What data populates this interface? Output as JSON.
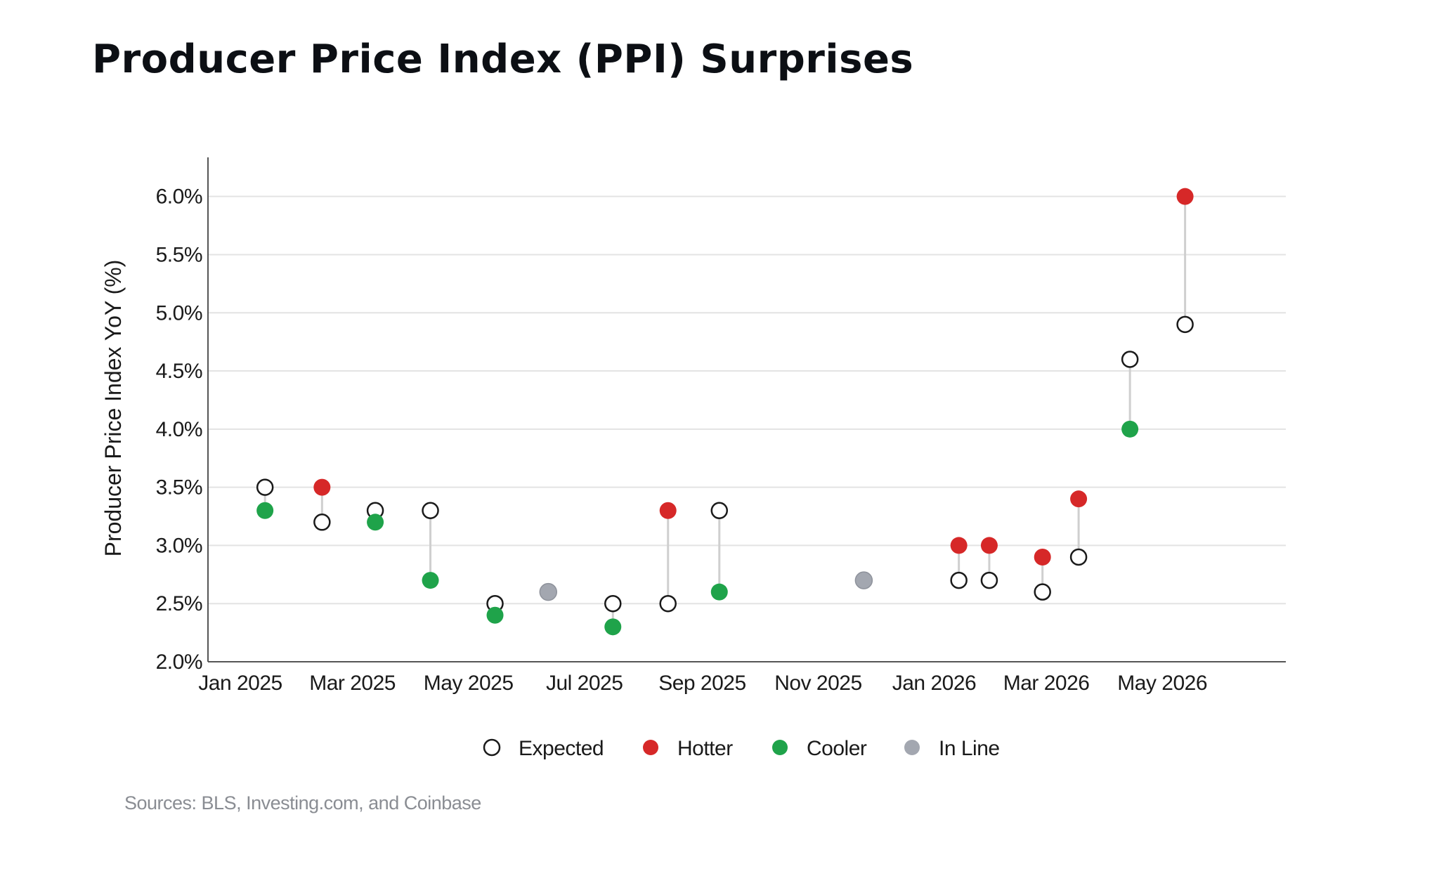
{
  "title": "Producer Price Index (PPI) Surprises",
  "source": "Sources: BLS, Investing.com, and Coinbase",
  "colors": {
    "hotter": "#d62828",
    "cooler": "#1fa34a",
    "in_line": "#a3a7b0",
    "expected_stroke": "#1a1a1a",
    "gridline": "#e3e3e3",
    "connector": "#cfcfcf",
    "axis": "#555555"
  },
  "chart_data": {
    "type": "scatter",
    "title": "Producer Price Index (PPI) Surprises",
    "ylabel": "Producer Price Index YoY (%)",
    "xlabel": "",
    "ylim": [
      2.0,
      6.3
    ],
    "xlim": [
      "2024-12-15",
      "2026-07-05"
    ],
    "y_ticks": [
      2.0,
      2.5,
      3.0,
      3.5,
      4.0,
      4.5,
      5.0,
      5.5,
      6.0
    ],
    "y_tick_labels": [
      "2.0%",
      "2.5%",
      "3.0%",
      "3.5%",
      "4.0%",
      "4.5%",
      "5.0%",
      "5.5%",
      "6.0%"
    ],
    "x_ticks": [
      "2025-01-01",
      "2025-03-01",
      "2025-05-01",
      "2025-07-01",
      "2025-09-01",
      "2025-11-01",
      "2026-01-01",
      "2026-03-01",
      "2026-05-01"
    ],
    "x_tick_labels": [
      "Jan 2025",
      "Mar 2025",
      "May 2025",
      "Jul 2025",
      "Sep 2025",
      "Nov 2025",
      "Jan 2026",
      "Mar 2026",
      "May 2026"
    ],
    "grid": true,
    "legend_position": "bottom-center",
    "legend": [
      {
        "key": "expected",
        "label": "Expected"
      },
      {
        "key": "hotter",
        "label": "Hotter"
      },
      {
        "key": "cooler",
        "label": "Cooler"
      },
      {
        "key": "in_line",
        "label": "In Line"
      }
    ],
    "points": [
      {
        "date": "2025-01-14",
        "expected": 3.5,
        "actual": 3.3,
        "result": "cooler"
      },
      {
        "date": "2025-02-13",
        "expected": 3.2,
        "actual": 3.5,
        "result": "hotter"
      },
      {
        "date": "2025-03-13",
        "expected": 3.3,
        "actual": 3.2,
        "result": "cooler"
      },
      {
        "date": "2025-04-11",
        "expected": 3.3,
        "actual": 2.7,
        "result": "cooler"
      },
      {
        "date": "2025-05-15",
        "expected": 2.5,
        "actual": 2.4,
        "result": "cooler"
      },
      {
        "date": "2025-06-12",
        "expected": 2.6,
        "actual": 2.6,
        "result": "in_line"
      },
      {
        "date": "2025-07-16",
        "expected": 2.5,
        "actual": 2.3,
        "result": "cooler"
      },
      {
        "date": "2025-08-14",
        "expected": 2.5,
        "actual": 3.3,
        "result": "hotter"
      },
      {
        "date": "2025-09-10",
        "expected": 3.3,
        "actual": 2.6,
        "result": "cooler"
      },
      {
        "date": "2025-11-25",
        "expected": 2.7,
        "actual": 2.7,
        "result": "in_line"
      },
      {
        "date": "2026-01-14",
        "expected": 2.7,
        "actual": 3.0,
        "result": "hotter"
      },
      {
        "date": "2026-01-30",
        "expected": 2.7,
        "actual": 3.0,
        "result": "hotter"
      },
      {
        "date": "2026-02-27",
        "expected": 2.6,
        "actual": 2.9,
        "result": "hotter"
      },
      {
        "date": "2026-03-18",
        "expected": 2.9,
        "actual": 3.4,
        "result": "hotter"
      },
      {
        "date": "2026-04-14",
        "expected": 4.6,
        "actual": 4.0,
        "result": "cooler"
      },
      {
        "date": "2026-05-13",
        "expected": 4.9,
        "actual": 6.0,
        "result": "hotter"
      }
    ]
  }
}
